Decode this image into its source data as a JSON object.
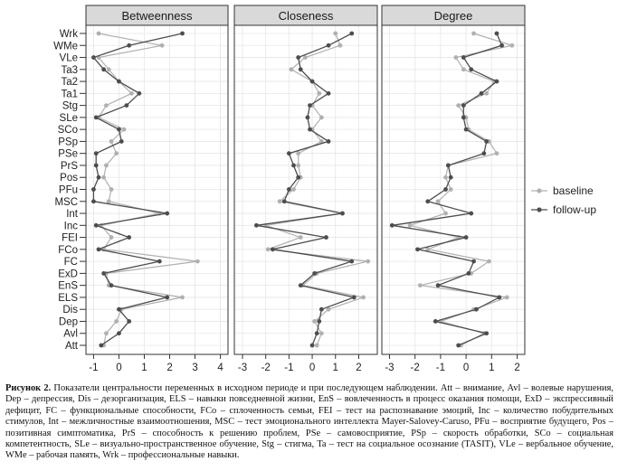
{
  "chart_data": {
    "type": "line",
    "facets": [
      "Betweenness",
      "Closeness",
      "Degree"
    ],
    "variables": [
      "Att",
      "Avl",
      "Dep",
      "Dis",
      "ELS",
      "EnS",
      "ExD",
      "FC",
      "FCo",
      "FEI",
      "Inc",
      "Int",
      "MSC",
      "PFu",
      "Pos",
      "PrS",
      "PSe",
      "PSp",
      "SCo",
      "SLe",
      "Stg",
      "Ta1",
      "Ta2",
      "Ta3",
      "VLe",
      "WMe",
      "Wrk"
    ],
    "x_ranges": [
      [
        -1.3,
        4.3
      ],
      [
        -3.35,
        2.8
      ],
      [
        -3.3,
        2.3
      ]
    ],
    "x_ticks": [
      [
        -1,
        0,
        1,
        2,
        3,
        4
      ],
      [
        -3,
        -2,
        -1,
        0,
        1,
        2
      ],
      [
        -3,
        -2,
        -1,
        0,
        1,
        2
      ]
    ],
    "series": [
      {
        "name": "baseline",
        "color": "#b0b0b0",
        "values": [
          [
            -0.6,
            -0.5,
            -0.1,
            0.1,
            2.5,
            -0.4,
            -0.5,
            3.1,
            -0.6,
            -0.3,
            -0.7,
            1.6,
            -0.4,
            -0.3,
            -0.6,
            -0.5,
            -0.1,
            -0.3,
            0.2,
            -0.8,
            -0.5,
            0.5,
            0.0,
            -0.4,
            -0.8,
            1.7,
            -0.8
          ],
          [
            0.2,
            0.4,
            0.1,
            0.7,
            2.2,
            -0.4,
            0.2,
            2.4,
            -1.9,
            -0.5,
            -2.0,
            1.3,
            -1.4,
            -0.8,
            -0.5,
            -0.6,
            -0.6,
            0.4,
            0.0,
            0.4,
            0.0,
            0.3,
            0.0,
            -0.9,
            -0.3,
            1.2,
            1.0
          ],
          [
            -0.2,
            0.7,
            -1.0,
            0.3,
            1.6,
            -1.8,
            0.2,
            0.9,
            -1.5,
            -0.3,
            -2.2,
            -0.8,
            -1.1,
            -0.6,
            -0.8,
            -0.7,
            1.2,
            0.9,
            0.1,
            0.0,
            -0.3,
            0.8,
            1.1,
            -0.1,
            -0.4,
            1.8,
            0.3
          ]
        ]
      },
      {
        "name": "follow-up",
        "color": "#4d4d4d",
        "values": [
          [
            -0.7,
            0.0,
            0.4,
            0.0,
            1.9,
            -0.3,
            -0.6,
            1.6,
            -0.8,
            0.4,
            -0.9,
            1.9,
            -1.0,
            -1.0,
            -0.8,
            -0.9,
            -0.9,
            0.1,
            0.0,
            -0.9,
            0.3,
            0.8,
            0.0,
            -0.6,
            -1.0,
            0.4,
            2.5
          ],
          [
            0.0,
            0.2,
            0.3,
            0.4,
            1.8,
            -0.5,
            0.1,
            1.7,
            -1.7,
            0.6,
            -2.4,
            1.3,
            -1.2,
            -1.0,
            -0.6,
            -0.8,
            -1.0,
            0.7,
            -0.1,
            -0.2,
            -0.1,
            0.7,
            0.0,
            -0.5,
            -0.6,
            0.7,
            1.7
          ],
          [
            -0.3,
            0.8,
            -1.2,
            0.4,
            1.3,
            -1.1,
            0.1,
            0.3,
            -1.9,
            0.0,
            -2.9,
            0.2,
            -1.5,
            -0.8,
            -0.6,
            -0.7,
            0.7,
            0.8,
            0.0,
            -0.1,
            -0.1,
            0.6,
            1.2,
            0.2,
            -0.1,
            1.4,
            1.2
          ]
        ]
      }
    ],
    "legend": {
      "position": "right",
      "entries": [
        "baseline",
        "follow-up"
      ]
    }
  },
  "caption": {
    "label": "Рисунок 2.",
    "text": " Показатели центральности переменных в исходном периоде и при последующем наблюдении. Att – внимание, Avl – волевые нарушения, Dep – депрессия, Dis – дезорганизация, ELS – навыки повседневной жизни, EnS – вовлеченность в процесс оказания помощи, ExD – экспрессивный дефицит, FC – функциональные способности, FCo – сплоченность семьи, FEI – тест на распознавание эмоций, Inc – количество побудительных стимулов, Int – межличностные взаимоотношения, MSC – тест эмоционального интеллекта Mayer-Salovey-Caruso, PFu – восприятие будущего, Pos – позитивная симптоматика, PrS – способность к решению проблем, PSe – самовосприятие, PSp – скорость обработки, SCo – социальная компетентность, SLe – визуально-пространственное обучение, Stg – стигма, Ta – тест на социальное осознание (TASIT), VLe – вербальное обучение, WMe – рабочая память, Wrk – профессиональные навыки."
  }
}
